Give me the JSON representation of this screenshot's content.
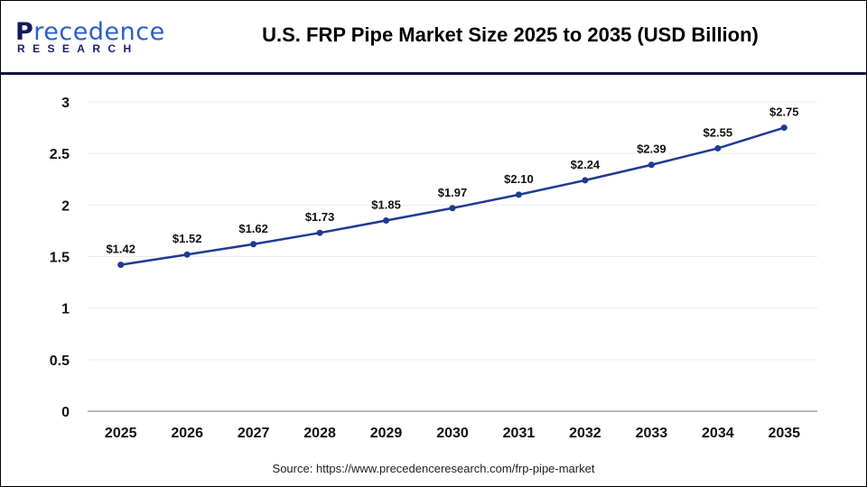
{
  "header": {
    "logo_text": "Precedence",
    "logo_sub": "RESEARCH",
    "title": "U.S. FRP Pipe Market Size 2025 to 2035 (USD Billion)"
  },
  "source": "Source: https://www.precedenceresearch.com/frp-pipe-market",
  "chart_data": {
    "type": "line",
    "title": "U.S. FRP Pipe Market Size 2025 to 2035 (USD Billion)",
    "categories": [
      "2025",
      "2026",
      "2027",
      "2028",
      "2029",
      "2030",
      "2031",
      "2032",
      "2033",
      "2034",
      "2035"
    ],
    "series": [
      {
        "values": [
          1.42,
          1.52,
          1.62,
          1.73,
          1.85,
          1.97,
          2.1,
          2.24,
          2.39,
          2.55,
          2.75
        ]
      }
    ],
    "data_labels": [
      "$1.42",
      "$1.52",
      "$1.62",
      "$1.73",
      "$1.85",
      "$1.97",
      "$2.10",
      "$2.24",
      "$2.39",
      "$2.55",
      "$2.75"
    ],
    "yticks": [
      "0",
      "0.5",
      "1",
      "1.5",
      "2",
      "2.5",
      "3"
    ],
    "ylim": [
      0,
      3
    ],
    "grid": true,
    "line_color": "#1f3a93",
    "xlabel": "",
    "ylabel": ""
  }
}
